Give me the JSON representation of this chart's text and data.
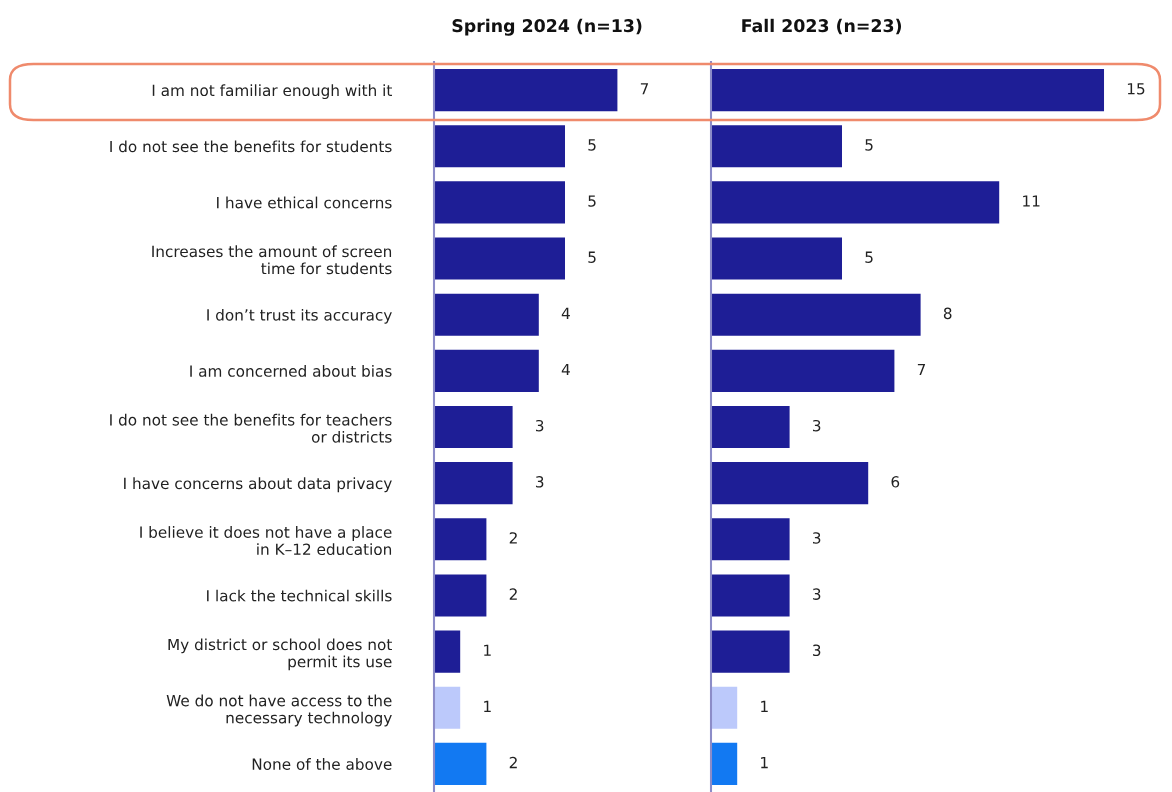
{
  "chart_data": [
    {
      "type": "bar",
      "orientation": "horizontal",
      "title": "Spring 2024 (n=13)",
      "tick_labels": "y",
      "data_labels": true,
      "categories": [
        "I am not familiar enough with it",
        "I do not see the benefits for students",
        "I have ethical concerns",
        "Increases the amount of screen\ntime for students",
        "I don’t trust its accuracy",
        "I am concerned about bias",
        "I do not see the benefits for teachers\nor districts",
        "I have concerns about data privacy",
        "I believe it does not have a place\nin K–12 education",
        "I lack the technical skills",
        "My district or school does not\npermit its use",
        "We do not have access to the\nnecessary technology",
        "None of the above"
      ],
      "values": [
        7,
        5,
        5,
        5,
        4,
        4,
        3,
        3,
        2,
        2,
        1,
        1,
        2
      ],
      "colors": [
        "#1e1e96",
        "#1e1e96",
        "#1e1e96",
        "#1e1e96",
        "#1e1e96",
        "#1e1e96",
        "#1e1e96",
        "#1e1e96",
        "#1e1e96",
        "#1e1e96",
        "#1e1e96",
        "#bcc9fb",
        "#1279f2"
      ]
    },
    {
      "type": "bar",
      "orientation": "horizontal",
      "title": "Fall 2023 (n=23)",
      "tick_labels": false,
      "data_labels": true,
      "categories": [
        null,
        null,
        null,
        null,
        null,
        null,
        null,
        null,
        null,
        null,
        null,
        null,
        null
      ],
      "values": [
        15,
        5,
        11,
        5,
        8,
        7,
        3,
        6,
        3,
        3,
        3,
        1,
        1
      ],
      "colors": [
        "#1e1e96",
        "#1e1e96",
        "#1e1e96",
        "#1e1e96",
        "#1e1e96",
        "#1e1e96",
        "#1e1e96",
        "#1e1e96",
        "#1e1e96",
        "#1e1e96",
        "#1e1e96",
        "#bcc9fb",
        "#1279f2"
      ]
    }
  ]
}
